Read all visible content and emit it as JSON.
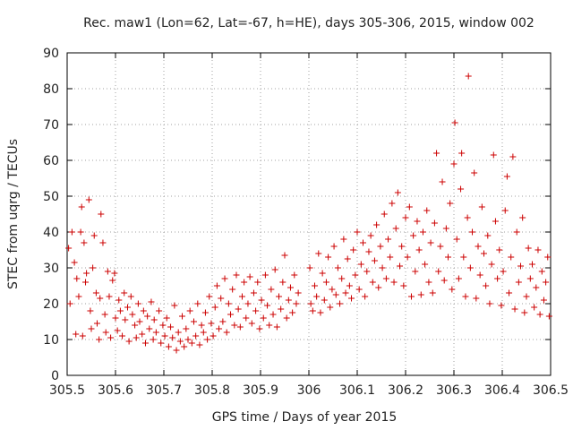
{
  "chart_data": {
    "type": "scatter",
    "title": "Rec. maw1 (Lon=62, Lat=-67, h=HE), days 305-306, 2015, window 002",
    "xlabel": "GPS time / Days of year 2015",
    "ylabel": "STEC from uqrg / TECUs",
    "xlim": [
      305.5,
      306.5
    ],
    "ylim": [
      0,
      90
    ],
    "x_ticks": [
      305.5,
      305.6,
      305.7,
      305.8,
      305.9,
      306,
      306.1,
      306.2,
      306.3,
      306.4,
      306.5
    ],
    "x_tick_labels": [
      "305.5",
      "305.6",
      "305.7",
      "305.8",
      "305.9",
      "306",
      "306.1",
      "306.2",
      "306.3",
      "306.4",
      "306.5"
    ],
    "y_ticks": [
      0,
      10,
      20,
      30,
      40,
      50,
      60,
      70,
      80,
      90
    ],
    "y_tick_labels": [
      "0",
      "10",
      "20",
      "30",
      "40",
      "50",
      "60",
      "70",
      "80",
      "90"
    ],
    "grid": true,
    "marker": "+",
    "color": "#cc0000",
    "series": [
      {
        "name": "STEC",
        "points": [
          [
            305.503,
            35.5
          ],
          [
            305.506,
            20
          ],
          [
            305.51,
            40
          ],
          [
            305.515,
            31.5
          ],
          [
            305.518,
            11.5
          ],
          [
            305.52,
            27
          ],
          [
            305.524,
            22
          ],
          [
            305.528,
            40
          ],
          [
            305.53,
            47
          ],
          [
            305.532,
            11
          ],
          [
            305.535,
            37
          ],
          [
            305.538,
            26
          ],
          [
            305.54,
            28.5
          ],
          [
            305.545,
            49
          ],
          [
            305.548,
            18
          ],
          [
            305.55,
            13
          ],
          [
            305.553,
            30
          ],
          [
            305.556,
            39
          ],
          [
            305.56,
            23
          ],
          [
            305.562,
            14.5
          ],
          [
            305.566,
            10
          ],
          [
            305.568,
            21.5
          ],
          [
            305.57,
            45
          ],
          [
            305.574,
            37
          ],
          [
            305.578,
            17
          ],
          [
            305.58,
            12
          ],
          [
            305.584,
            29
          ],
          [
            305.587,
            22
          ],
          [
            305.59,
            10.5
          ],
          [
            305.594,
            26.5
          ],
          [
            305.598,
            28.5
          ],
          [
            305.6,
            16
          ],
          [
            305.604,
            12.5
          ],
          [
            305.607,
            21
          ],
          [
            305.61,
            18
          ],
          [
            305.614,
            11
          ],
          [
            305.618,
            23
          ],
          [
            305.62,
            15.5
          ],
          [
            305.625,
            19
          ],
          [
            305.628,
            9.5
          ],
          [
            305.632,
            22
          ],
          [
            305.635,
            17
          ],
          [
            305.64,
            14
          ],
          [
            305.643,
            10.5
          ],
          [
            305.647,
            20
          ],
          [
            305.65,
            15
          ],
          [
            305.655,
            11.5
          ],
          [
            305.658,
            18
          ],
          [
            305.662,
            9
          ],
          [
            305.666,
            16.5
          ],
          [
            305.67,
            13
          ],
          [
            305.674,
            20.5
          ],
          [
            305.678,
            10
          ],
          [
            305.68,
            15.5
          ],
          [
            305.684,
            12
          ],
          [
            305.69,
            18
          ],
          [
            305.694,
            9
          ],
          [
            305.698,
            14
          ],
          [
            305.702,
            11
          ],
          [
            305.706,
            16
          ],
          [
            305.71,
            8
          ],
          [
            305.714,
            13.5
          ],
          [
            305.718,
            10.5
          ],
          [
            305.722,
            19.5
          ],
          [
            305.726,
            7
          ],
          [
            305.73,
            12
          ],
          [
            305.734,
            9.5
          ],
          [
            305.738,
            16.5
          ],
          [
            305.742,
            8
          ],
          [
            305.746,
            13
          ],
          [
            305.75,
            10
          ],
          [
            305.754,
            18
          ],
          [
            305.758,
            9
          ],
          [
            305.762,
            15
          ],
          [
            305.766,
            11
          ],
          [
            305.77,
            20
          ],
          [
            305.774,
            8.5
          ],
          [
            305.778,
            14
          ],
          [
            305.782,
            12
          ],
          [
            305.786,
            17.5
          ],
          [
            305.79,
            10
          ],
          [
            305.794,
            22
          ],
          [
            305.798,
            14.5
          ],
          [
            305.802,
            11
          ],
          [
            305.806,
            19
          ],
          [
            305.81,
            25
          ],
          [
            305.814,
            13
          ],
          [
            305.818,
            21.5
          ],
          [
            305.822,
            15
          ],
          [
            305.826,
            27
          ],
          [
            305.83,
            12
          ],
          [
            305.834,
            20
          ],
          [
            305.838,
            17
          ],
          [
            305.842,
            24
          ],
          [
            305.846,
            14
          ],
          [
            305.85,
            28
          ],
          [
            305.854,
            18.5
          ],
          [
            305.858,
            13.5
          ],
          [
            305.862,
            22
          ],
          [
            305.866,
            26
          ],
          [
            305.87,
            16
          ],
          [
            305.874,
            20
          ],
          [
            305.878,
            27.5
          ],
          [
            305.882,
            14.5
          ],
          [
            305.886,
            23
          ],
          [
            305.89,
            18
          ],
          [
            305.894,
            26
          ],
          [
            305.898,
            13
          ],
          [
            305.902,
            21
          ],
          [
            305.906,
            16
          ],
          [
            305.91,
            28
          ],
          [
            305.914,
            19.5
          ],
          [
            305.918,
            14
          ],
          [
            305.922,
            24
          ],
          [
            305.926,
            17
          ],
          [
            305.93,
            29.5
          ],
          [
            305.934,
            13.5
          ],
          [
            305.938,
            22
          ],
          [
            305.942,
            18.5
          ],
          [
            305.946,
            26
          ],
          [
            305.95,
            33.5
          ],
          [
            305.954,
            16
          ],
          [
            305.958,
            21
          ],
          [
            305.962,
            24.5
          ],
          [
            305.966,
            17.5
          ],
          [
            305.97,
            28
          ],
          [
            305.974,
            20
          ],
          [
            305.978,
            23
          ],
          [
            306.002,
            30
          ],
          [
            306.004,
            20
          ],
          [
            306.008,
            18
          ],
          [
            306.012,
            25
          ],
          [
            306.016,
            22
          ],
          [
            306.02,
            34
          ],
          [
            306.024,
            17.5
          ],
          [
            306.028,
            28.5
          ],
          [
            306.032,
            21
          ],
          [
            306.036,
            26
          ],
          [
            306.04,
            33
          ],
          [
            306.044,
            19
          ],
          [
            306.048,
            24
          ],
          [
            306.052,
            36
          ],
          [
            306.056,
            22.5
          ],
          [
            306.06,
            30
          ],
          [
            306.064,
            20
          ],
          [
            306.068,
            27
          ],
          [
            306.072,
            38
          ],
          [
            306.076,
            23
          ],
          [
            306.08,
            32.5
          ],
          [
            306.084,
            25
          ],
          [
            306.088,
            21.5
          ],
          [
            306.092,
            35
          ],
          [
            306.096,
            28
          ],
          [
            306.1,
            40
          ],
          [
            306.104,
            24
          ],
          [
            306.108,
            31
          ],
          [
            306.112,
            37
          ],
          [
            306.116,
            22
          ],
          [
            306.12,
            29
          ],
          [
            306.124,
            34.5
          ],
          [
            306.128,
            39
          ],
          [
            306.132,
            26
          ],
          [
            306.136,
            32
          ],
          [
            306.14,
            42
          ],
          [
            306.144,
            24.5
          ],
          [
            306.148,
            36
          ],
          [
            306.152,
            30
          ],
          [
            306.156,
            45
          ],
          [
            306.16,
            27
          ],
          [
            306.164,
            38
          ],
          [
            306.168,
            33
          ],
          [
            306.172,
            48
          ],
          [
            306.176,
            26
          ],
          [
            306.18,
            41
          ],
          [
            306.184,
            51
          ],
          [
            306.188,
            30.5
          ],
          [
            306.192,
            36
          ],
          [
            306.196,
            25
          ],
          [
            306.2,
            44
          ],
          [
            306.204,
            33
          ],
          [
            306.208,
            47
          ],
          [
            306.212,
            22
          ],
          [
            306.216,
            39
          ],
          [
            306.22,
            29
          ],
          [
            306.224,
            43
          ],
          [
            306.228,
            35
          ],
          [
            306.232,
            22.5
          ],
          [
            306.236,
            40
          ],
          [
            306.24,
            31
          ],
          [
            306.244,
            46
          ],
          [
            306.248,
            26
          ],
          [
            306.252,
            37
          ],
          [
            306.256,
            23
          ],
          [
            306.26,
            42.5
          ],
          [
            306.264,
            62
          ],
          [
            306.268,
            29
          ],
          [
            306.272,
            36
          ],
          [
            306.276,
            54
          ],
          [
            306.28,
            26.5
          ],
          [
            306.284,
            41
          ],
          [
            306.288,
            33
          ],
          [
            306.292,
            48
          ],
          [
            306.296,
            24
          ],
          [
            306.3,
            59
          ],
          [
            306.302,
            70.5
          ],
          [
            306.306,
            38
          ],
          [
            306.31,
            27
          ],
          [
            306.314,
            52
          ],
          [
            306.316,
            62
          ],
          [
            306.32,
            33
          ],
          [
            306.324,
            22
          ],
          [
            306.328,
            44
          ],
          [
            306.33,
            83.5
          ],
          [
            306.334,
            30
          ],
          [
            306.338,
            40
          ],
          [
            306.342,
            56.5
          ],
          [
            306.346,
            21.5
          ],
          [
            306.35,
            36
          ],
          [
            306.354,
            28
          ],
          [
            306.358,
            47
          ],
          [
            306.362,
            34
          ],
          [
            306.366,
            25
          ],
          [
            306.37,
            39
          ],
          [
            306.374,
            20
          ],
          [
            306.378,
            31
          ],
          [
            306.382,
            61.5
          ],
          [
            306.386,
            43
          ],
          [
            306.39,
            27
          ],
          [
            306.394,
            35
          ],
          [
            306.398,
            19.5
          ],
          [
            306.402,
            29
          ],
          [
            306.406,
            46
          ],
          [
            306.41,
            55.5
          ],
          [
            306.414,
            23
          ],
          [
            306.418,
            33
          ],
          [
            306.422,
            61
          ],
          [
            306.426,
            18.5
          ],
          [
            306.43,
            40
          ],
          [
            306.434,
            26
          ],
          [
            306.438,
            30.5
          ],
          [
            306.442,
            44
          ],
          [
            306.446,
            17.5
          ],
          [
            306.45,
            22
          ],
          [
            306.454,
            35.5
          ],
          [
            306.458,
            27
          ],
          [
            306.462,
            31
          ],
          [
            306.466,
            19
          ],
          [
            306.47,
            24.5
          ],
          [
            306.474,
            35
          ],
          [
            306.478,
            17
          ],
          [
            306.482,
            29
          ],
          [
            306.486,
            21
          ],
          [
            306.49,
            26
          ],
          [
            306.494,
            33
          ],
          [
            306.497,
            16.5
          ]
        ]
      }
    ]
  }
}
